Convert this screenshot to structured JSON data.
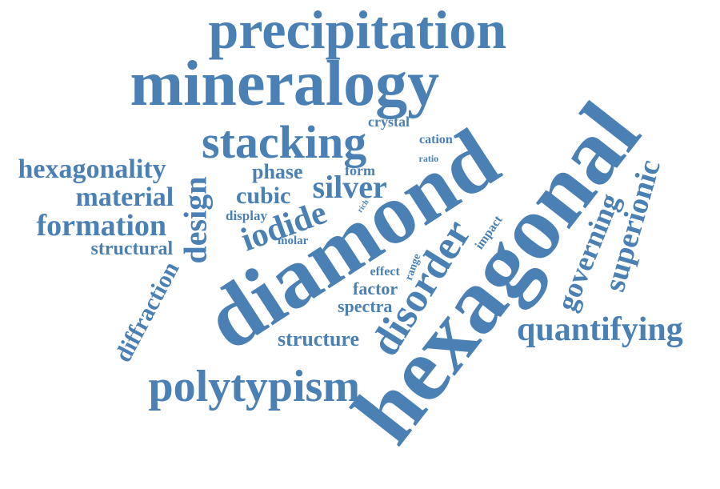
{
  "colors": {
    "word": "#4a80b4",
    "background": "#ffffff"
  },
  "words": [
    {
      "text": "precipitation"
    },
    {
      "text": "mineralogy"
    },
    {
      "text": "hexagonal"
    },
    {
      "text": "diamond"
    },
    {
      "text": "stacking"
    },
    {
      "text": "crystal"
    },
    {
      "text": "cation"
    },
    {
      "text": "ratio"
    },
    {
      "text": "hexagonality"
    },
    {
      "text": "material"
    },
    {
      "text": "formation"
    },
    {
      "text": "structural"
    },
    {
      "text": "design"
    },
    {
      "text": "phase"
    },
    {
      "text": "form"
    },
    {
      "text": "silver"
    },
    {
      "text": "cubic"
    },
    {
      "text": "display"
    },
    {
      "text": "iodide"
    },
    {
      "text": "rich"
    },
    {
      "text": "molar"
    },
    {
      "text": "impact"
    },
    {
      "text": "disorder"
    },
    {
      "text": "effect"
    },
    {
      "text": "range"
    },
    {
      "text": "factor"
    },
    {
      "text": "spectra"
    },
    {
      "text": "diffraction"
    },
    {
      "text": "structure"
    },
    {
      "text": "polytypism"
    },
    {
      "text": "governing"
    },
    {
      "text": "superionic"
    },
    {
      "text": "quantifying"
    }
  ]
}
